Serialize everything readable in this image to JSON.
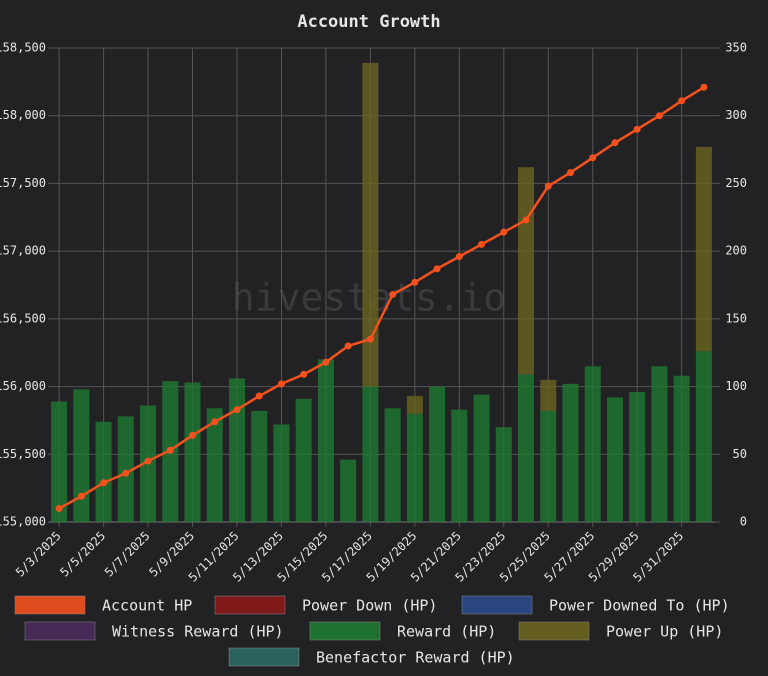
{
  "chart_data": {
    "type": "combo",
    "title": "Account Growth",
    "watermark": "hivestats.io",
    "categories": [
      "5/3/2025",
      null,
      "5/5/2025",
      null,
      "5/7/2025",
      null,
      "5/9/2025",
      null,
      "5/11/2025",
      null,
      "5/13/2025",
      null,
      "5/15/2025",
      null,
      "5/17/2025",
      null,
      "5/19/2025",
      null,
      "5/21/2025",
      null,
      "5/23/2025",
      null,
      "5/25/2025",
      null,
      "5/27/2025",
      null,
      "5/29/2025",
      null,
      "5/31/2025",
      null
    ],
    "ylim": [
      155000,
      158500
    ],
    "yticks": [
      {
        "value": 155000,
        "label": "155,000"
      },
      {
        "value": 155500,
        "label": "155,500"
      },
      {
        "value": 156000,
        "label": "156,000"
      },
      {
        "value": 156500,
        "label": "156,500"
      },
      {
        "value": 157000,
        "label": "157,000"
      },
      {
        "value": 157500,
        "label": "157,500"
      },
      {
        "value": 158000,
        "label": "158,000"
      },
      {
        "value": 158500,
        "label": "158,500"
      }
    ],
    "y2lim": [
      0,
      350
    ],
    "y2ticks": [
      0,
      50,
      100,
      150,
      200,
      250,
      300,
      350
    ],
    "grid": true,
    "series": [
      {
        "name": "Account HP",
        "color": "#f4511e",
        "type": "line",
        "axis": "y",
        "values": [
          155100,
          155190,
          155290,
          155360,
          155450,
          155530,
          155640,
          155740,
          155830,
          155930,
          156020,
          156090,
          156180,
          156300,
          156350,
          156680,
          156770,
          156870,
          156960,
          157050,
          157140,
          157230,
          157480,
          157580,
          157690,
          157800,
          157900,
          158000,
          158110,
          158210
        ]
      },
      {
        "name": "Power Down (HP)",
        "color": "#8b1a1a"
      },
      {
        "name": "Power Downed To (HP)",
        "color": "#2a4a8a"
      },
      {
        "name": "Witness Reward (HP)",
        "color": "#4a2a5a"
      },
      {
        "name": "Reward (HP)",
        "color": "#1e7a32",
        "type": "bar",
        "axis": "y2",
        "values": [
          89,
          98,
          74,
          78,
          86,
          104,
          103,
          84,
          106,
          82,
          72,
          91,
          120,
          46,
          100,
          84,
          80,
          100,
          83,
          94,
          70,
          109,
          82,
          102,
          115,
          92,
          96,
          115,
          108,
          126
        ]
      },
      {
        "name": "Power Up (HP)",
        "color": "#6b6420",
        "type": "bar",
        "axis": "y2",
        "values": [
          0,
          0,
          0,
          0,
          0,
          0,
          0,
          0,
          0,
          0,
          0,
          0,
          0,
          0,
          239,
          0,
          13,
          0,
          0,
          0,
          0,
          153,
          23,
          0,
          0,
          0,
          0,
          0,
          0,
          151
        ]
      },
      {
        "name": "Benefactor Reward (HP)",
        "color": "#2e6b64"
      }
    ]
  }
}
